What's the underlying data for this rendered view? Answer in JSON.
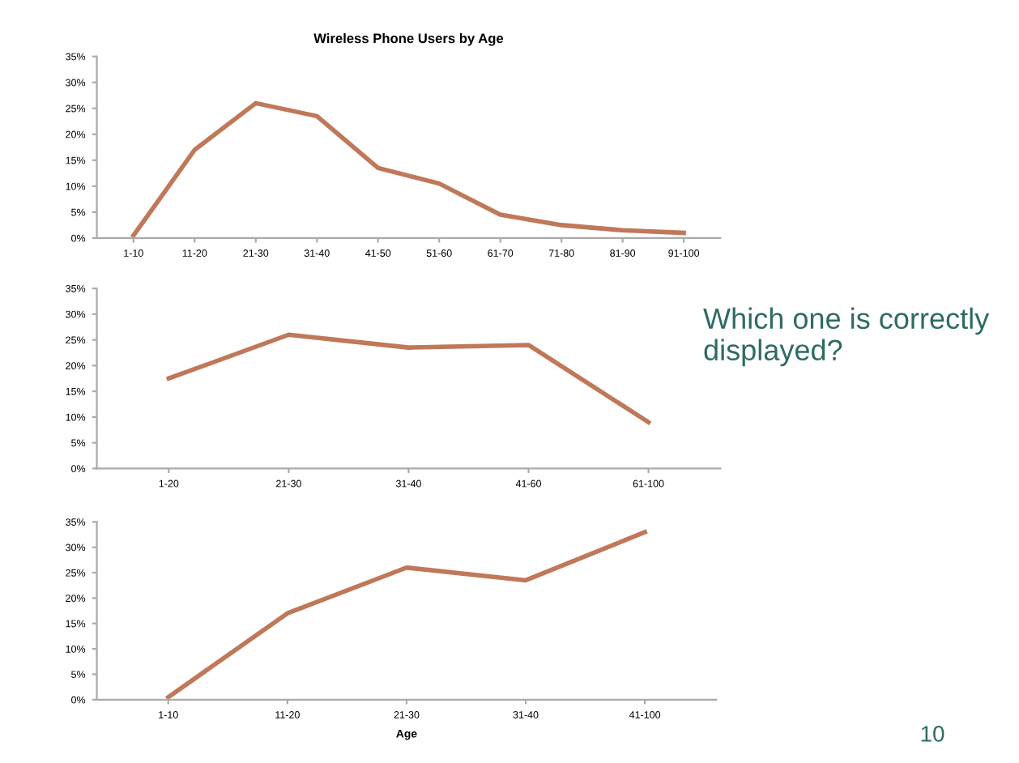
{
  "chart_data": [
    {
      "type": "line",
      "title": "Wireless Phone Users by Age",
      "categories": [
        "1-10",
        "11-20",
        "21-30",
        "31-40",
        "41-50",
        "51-60",
        "61-70",
        "71-80",
        "81-90",
        "91-100"
      ],
      "series": [
        {
          "color": "#c0785a",
          "values": [
            0.5,
            17,
            26,
            23.5,
            13.5,
            10.5,
            4.5,
            2.5,
            1.5,
            1
          ]
        }
      ],
      "ylim": [
        0,
        35
      ],
      "yticks": [
        {
          "value": 0,
          "label": "0%"
        },
        {
          "value": 5,
          "label": "5%"
        },
        {
          "value": 10,
          "label": "10%"
        },
        {
          "value": 15,
          "label": "15%"
        },
        {
          "value": 20,
          "label": "20%"
        },
        {
          "value": 25,
          "label": "25%"
        },
        {
          "value": 30,
          "label": "30%"
        },
        {
          "value": 35,
          "label": "35%"
        }
      ],
      "grid": false
    },
    {
      "type": "line",
      "categories": [
        "1-20",
        "21-30",
        "31-40",
        "41-60",
        "61-100"
      ],
      "series": [
        {
          "color": "#c0785a",
          "values": [
            17.5,
            26,
            23.5,
            24,
            9
          ]
        }
      ],
      "ylim": [
        0,
        35
      ],
      "yticks": [
        {
          "value": 0,
          "label": "0%"
        },
        {
          "value": 5,
          "label": "5%"
        },
        {
          "value": 10,
          "label": "10%"
        },
        {
          "value": 15,
          "label": "15%"
        },
        {
          "value": 20,
          "label": "20%"
        },
        {
          "value": 25,
          "label": "25%"
        },
        {
          "value": 30,
          "label": "30%"
        },
        {
          "value": 35,
          "label": "35%"
        }
      ],
      "grid": false,
      "annotations": [
        "Which one is correctly displayed?"
      ]
    },
    {
      "type": "line",
      "xlabel": "Age",
      "categories": [
        "1-10",
        "11-20",
        "21-30",
        "31-40",
        "41-100"
      ],
      "series": [
        {
          "color": "#c0785a",
          "values": [
            0.5,
            17,
            26,
            23.5,
            33
          ]
        }
      ],
      "ylim": [
        0,
        35
      ],
      "yticks": [
        {
          "value": 0,
          "label": "0%"
        },
        {
          "value": 5,
          "label": "5%"
        },
        {
          "value": 10,
          "label": "10%"
        },
        {
          "value": 15,
          "label": "15%"
        },
        {
          "value": 20,
          "label": "20%"
        },
        {
          "value": 25,
          "label": "25%"
        },
        {
          "value": 30,
          "label": "30%"
        },
        {
          "value": 35,
          "label": "35%"
        }
      ],
      "grid": false,
      "annotations": [
        "10"
      ]
    }
  ]
}
